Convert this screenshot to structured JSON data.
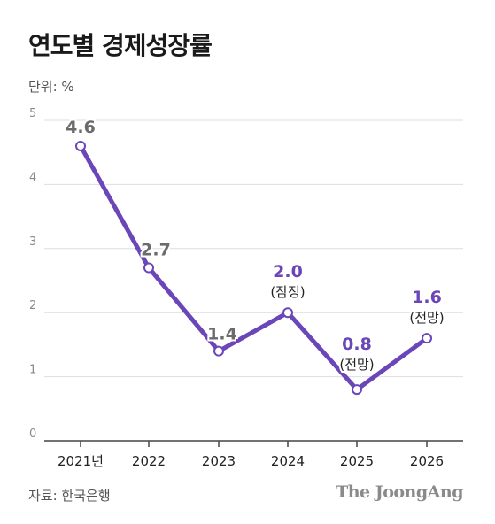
{
  "title": "연도별 경제성장률",
  "unit": "단위: %",
  "source": "자료: 한국은행",
  "brand": "The JoongAng",
  "chart_data": {
    "type": "line",
    "categories": [
      "2021년",
      "2022",
      "2023",
      "2024",
      "2025",
      "2026"
    ],
    "series": [
      {
        "values": [
          4.6,
          2.7,
          1.4,
          2.0,
          0.8,
          1.6
        ],
        "value_labels": [
          "4.6",
          "2.7",
          "1.4",
          "2.0",
          "0.8",
          "1.6"
        ],
        "notes": [
          "",
          "",
          "",
          "(잠정)",
          "(전망)",
          "(전망)"
        ]
      }
    ],
    "ylim": [
      0,
      5
    ],
    "yticks": [
      "0",
      "1",
      "2",
      "3",
      "4",
      "5"
    ],
    "grid": true,
    "colors": {
      "line": "#6b46b8",
      "highlight": "#6b46b8",
      "past_label": "#6b6b6b",
      "grid": "#dedede",
      "axis": "#444444"
    }
  }
}
